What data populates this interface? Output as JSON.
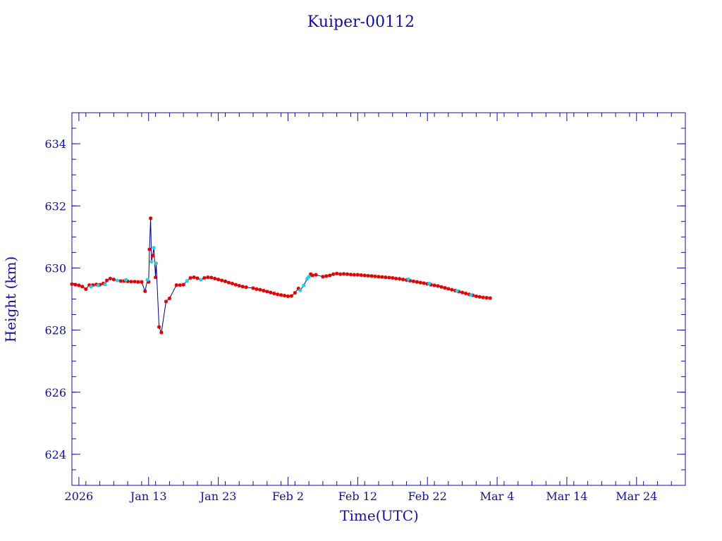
{
  "chart_data": {
    "type": "line",
    "title": "Kuiper-00112",
    "xlabel": "Time(UTC)",
    "ylabel": "Height (km)",
    "xlim": [
      "2026-01-02",
      "2026-03-31"
    ],
    "ylim": [
      623,
      635
    ],
    "x_tick_labels": [
      {
        "date": "2026-01-03",
        "label": "2026"
      },
      {
        "date": "2026-01-13",
        "label": "Jan 13"
      },
      {
        "date": "2026-01-23",
        "label": "Jan 23"
      },
      {
        "date": "2026-02-02",
        "label": "Feb  2"
      },
      {
        "date": "2026-02-12",
        "label": "Feb 12"
      },
      {
        "date": "2026-02-22",
        "label": "Feb 22"
      },
      {
        "date": "2026-03-04",
        "label": "Mar  4"
      },
      {
        "date": "2026-03-14",
        "label": "Mar 14"
      },
      {
        "date": "2026-03-24",
        "label": "Mar 24"
      }
    ],
    "x_tick_prefix": "2026",
    "y_ticks": [
      624,
      626,
      628,
      630,
      632,
      634
    ],
    "y_minor_step": 0.5,
    "grid": false,
    "colors": {
      "axes": "#1010a0",
      "line": "#00008b",
      "series_a": "#e00000",
      "series_b": "#20d0e0"
    },
    "series": [
      {
        "marker": "asterisk",
        "color": "#e00000",
        "points": [
          [
            "2026-01-02T00:00",
            629.48
          ],
          [
            "2026-01-02T12:00",
            629.46
          ],
          [
            "2026-01-03T00:00",
            629.44
          ],
          [
            "2026-01-03T12:00",
            629.4
          ],
          [
            "2026-01-04T00:00",
            629.32
          ],
          [
            "2026-01-04T12:00",
            629.45
          ],
          [
            "2026-01-05T00:00",
            629.45
          ],
          [
            "2026-01-05T12:00",
            629.47
          ],
          [
            "2026-01-06T00:00",
            629.46
          ],
          [
            "2026-01-06T12:00",
            629.5
          ],
          [
            "2026-01-07T00:00",
            629.6
          ],
          [
            "2026-01-07T12:00",
            629.66
          ],
          [
            "2026-01-08T00:00",
            629.63
          ],
          [
            "2026-01-09T00:00",
            629.58
          ],
          [
            "2026-01-09T12:00",
            629.58
          ],
          [
            "2026-01-10T00:00",
            629.57
          ],
          [
            "2026-01-10T12:00",
            629.56
          ],
          [
            "2026-01-11T00:00",
            629.56
          ],
          [
            "2026-01-11T12:00",
            629.55
          ],
          [
            "2026-01-12T00:00",
            629.55
          ],
          [
            "2026-01-12T12:00",
            629.25
          ],
          [
            "2026-01-13T00:00",
            629.55
          ],
          [
            "2026-01-13T03:00",
            630.6
          ],
          [
            "2026-01-13T07:00",
            631.6
          ],
          [
            "2026-01-13T14:00",
            630.4
          ],
          [
            "2026-01-14T00:00",
            629.7
          ],
          [
            "2026-01-14T12:00",
            628.1
          ],
          [
            "2026-01-14T20:00",
            627.92
          ],
          [
            "2026-01-15T12:00",
            628.92
          ],
          [
            "2026-01-16T00:00",
            629.02
          ],
          [
            "2026-01-17T00:00",
            629.45
          ],
          [
            "2026-01-17T12:00",
            629.45
          ],
          [
            "2026-01-18T00:00",
            629.46
          ],
          [
            "2026-01-19T00:00",
            629.68
          ],
          [
            "2026-01-19T12:00",
            629.7
          ],
          [
            "2026-01-20T00:00",
            629.67
          ],
          [
            "2026-01-21T00:00",
            629.68
          ],
          [
            "2026-01-21T12:00",
            629.7
          ],
          [
            "2026-01-22T00:00",
            629.69
          ],
          [
            "2026-01-22T12:00",
            629.66
          ],
          [
            "2026-01-23T00:00",
            629.63
          ],
          [
            "2026-01-23T12:00",
            629.6
          ],
          [
            "2026-01-24T00:00",
            629.57
          ],
          [
            "2026-01-24T12:00",
            629.53
          ],
          [
            "2026-01-25T00:00",
            629.5
          ],
          [
            "2026-01-25T12:00",
            629.46
          ],
          [
            "2026-01-26T00:00",
            629.43
          ],
          [
            "2026-01-26T12:00",
            629.4
          ],
          [
            "2026-01-27T00:00",
            629.38
          ],
          [
            "2026-01-28T00:00",
            629.35
          ],
          [
            "2026-01-28T12:00",
            629.32
          ],
          [
            "2026-01-29T00:00",
            629.3
          ],
          [
            "2026-01-29T12:00",
            629.27
          ],
          [
            "2026-01-30T00:00",
            629.24
          ],
          [
            "2026-01-30T12:00",
            629.21
          ],
          [
            "2026-01-31T00:00",
            629.18
          ],
          [
            "2026-01-31T12:00",
            629.15
          ],
          [
            "2026-02-01T00:00",
            629.13
          ],
          [
            "2026-02-01T12:00",
            629.11
          ],
          [
            "2026-02-02T00:00",
            629.09
          ],
          [
            "2026-02-02T12:00",
            629.1
          ],
          [
            "2026-02-03T00:00",
            629.2
          ],
          [
            "2026-02-03T12:00",
            629.34
          ],
          [
            "2026-02-05T06:00",
            629.8
          ],
          [
            "2026-02-05T12:00",
            629.76
          ],
          [
            "2026-02-06T00:00",
            629.78
          ],
          [
            "2026-02-07T00:00",
            629.72
          ],
          [
            "2026-02-07T12:00",
            629.74
          ],
          [
            "2026-02-08T00:00",
            629.76
          ],
          [
            "2026-02-08T12:00",
            629.8
          ],
          [
            "2026-02-09T00:00",
            629.82
          ],
          [
            "2026-02-09T12:00",
            629.8
          ],
          [
            "2026-02-10T00:00",
            629.81
          ],
          [
            "2026-02-10T12:00",
            629.8
          ],
          [
            "2026-02-11T00:00",
            629.79
          ],
          [
            "2026-02-11T12:00",
            629.78
          ],
          [
            "2026-02-12T00:00",
            629.78
          ],
          [
            "2026-02-12T12:00",
            629.77
          ],
          [
            "2026-02-13T00:00",
            629.76
          ],
          [
            "2026-02-13T12:00",
            629.75
          ],
          [
            "2026-02-14T00:00",
            629.74
          ],
          [
            "2026-02-14T12:00",
            629.73
          ],
          [
            "2026-02-15T00:00",
            629.72
          ],
          [
            "2026-02-15T12:00",
            629.71
          ],
          [
            "2026-02-16T00:00",
            629.7
          ],
          [
            "2026-02-16T12:00",
            629.69
          ],
          [
            "2026-02-17T00:00",
            629.68
          ],
          [
            "2026-02-17T12:00",
            629.66
          ],
          [
            "2026-02-18T00:00",
            629.65
          ],
          [
            "2026-02-18T12:00",
            629.63
          ],
          [
            "2026-02-19T00:00",
            629.61
          ],
          [
            "2026-02-19T12:00",
            629.59
          ],
          [
            "2026-02-20T00:00",
            629.57
          ],
          [
            "2026-02-20T12:00",
            629.55
          ],
          [
            "2026-02-21T00:00",
            629.53
          ],
          [
            "2026-02-21T12:00",
            629.51
          ],
          [
            "2026-02-22T00:00",
            629.49
          ],
          [
            "2026-02-22T12:00",
            629.46
          ],
          [
            "2026-02-23T00:00",
            629.44
          ],
          [
            "2026-02-23T12:00",
            629.42
          ],
          [
            "2026-02-24T00:00",
            629.39
          ],
          [
            "2026-02-24T12:00",
            629.36
          ],
          [
            "2026-02-25T00:00",
            629.33
          ],
          [
            "2026-02-25T12:00",
            629.3
          ],
          [
            "2026-02-26T00:00",
            629.27
          ],
          [
            "2026-02-26T12:00",
            629.24
          ],
          [
            "2026-02-27T00:00",
            629.21
          ],
          [
            "2026-02-27T12:00",
            629.18
          ],
          [
            "2026-02-28T00:00",
            629.15
          ],
          [
            "2026-02-28T12:00",
            629.12
          ],
          [
            "2026-03-01T00:00",
            629.09
          ],
          [
            "2026-03-01T12:00",
            629.07
          ],
          [
            "2026-03-02T00:00",
            629.05
          ],
          [
            "2026-03-02T12:00",
            629.04
          ],
          [
            "2026-03-03T00:00",
            629.03
          ]
        ]
      },
      {
        "marker": "asterisk",
        "color": "#20d0e0",
        "points": [
          [
            "2026-01-04T18:00",
            629.4
          ],
          [
            "2026-01-05T18:00",
            629.44
          ],
          [
            "2026-01-06T18:00",
            629.47
          ],
          [
            "2026-01-08T12:00",
            629.6
          ],
          [
            "2026-01-09T18:00",
            629.62
          ],
          [
            "2026-01-12T20:00",
            629.62
          ],
          [
            "2026-01-13T10:00",
            630.2
          ],
          [
            "2026-01-13T18:00",
            630.65
          ],
          [
            "2026-01-14T02:00",
            630.15
          ],
          [
            "2026-01-18T12:00",
            629.58
          ],
          [
            "2026-01-20T12:00",
            629.62
          ],
          [
            "2026-02-03T18:00",
            629.28
          ],
          [
            "2026-02-04T06:00",
            629.44
          ],
          [
            "2026-02-04T18:00",
            629.65
          ],
          [
            "2026-02-05T00:00",
            629.72
          ],
          [
            "2026-02-19T06:00",
            629.64
          ],
          [
            "2026-02-22T06:00",
            629.5
          ],
          [
            "2026-02-26T06:00",
            629.26
          ],
          [
            "2026-02-28T06:00",
            629.13
          ]
        ]
      }
    ]
  }
}
